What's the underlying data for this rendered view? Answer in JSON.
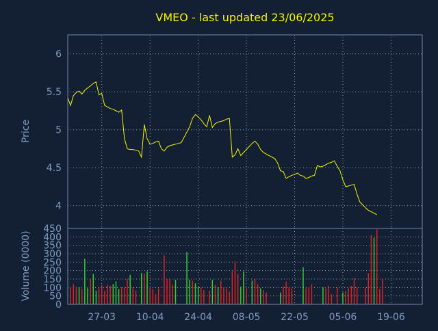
{
  "theme": {
    "background": "#132033",
    "frame": "#6f86a8",
    "grid": "#c8d0dc",
    "title_color": "#f5f500",
    "axis_text": "#7e9cc2",
    "price_line": "#f5f500",
    "volume_up": "#33cc33",
    "volume_down": "#dd2222"
  },
  "chart_data": [
    {
      "type": "line",
      "panel": "price",
      "title": "VMEO - last updated 23/06/2025",
      "ylabel": "Price",
      "ylim": [
        3.7,
        6.25
      ],
      "yticks": [
        "4",
        "4.5",
        "5",
        "5.5",
        "6"
      ],
      "xlim": [
        0,
        125
      ],
      "x_tick_positions": [
        12,
        29,
        46,
        63,
        80,
        97,
        114
      ],
      "x_tick_labels": [
        "27-03",
        "10-04",
        "24-04",
        "08-05",
        "22-05",
        "05-06",
        "19-06"
      ],
      "grid": true,
      "series": [
        {
          "values": [
            [
              0,
              5.42
            ],
            [
              1,
              5.32
            ],
            [
              2,
              5.45
            ],
            [
              3,
              5.49
            ],
            [
              4,
              5.51
            ],
            [
              5,
              5.47
            ],
            [
              6,
              5.52
            ],
            [
              7,
              5.55
            ],
            [
              8,
              5.58
            ],
            [
              9,
              5.61
            ],
            [
              10,
              5.63
            ],
            [
              11,
              5.46
            ],
            [
              12,
              5.48
            ],
            [
              13,
              5.32
            ],
            [
              14,
              5.3
            ],
            [
              15,
              5.28
            ],
            [
              16,
              5.27
            ],
            [
              17,
              5.25
            ],
            [
              18,
              5.23
            ],
            [
              19,
              5.26
            ],
            [
              20,
              4.88
            ],
            [
              21,
              4.75
            ],
            [
              22,
              4.74
            ],
            [
              23,
              4.74
            ],
            [
              24,
              4.73
            ],
            [
              25,
              4.72
            ],
            [
              26,
              4.64
            ],
            [
              27,
              5.07
            ],
            [
              28,
              4.88
            ],
            [
              29,
              4.81
            ],
            [
              30,
              4.82
            ],
            [
              31,
              4.84
            ],
            [
              32,
              4.85
            ],
            [
              33,
              4.75
            ],
            [
              34,
              4.72
            ],
            [
              35,
              4.77
            ],
            [
              36,
              4.79
            ],
            [
              37,
              4.8
            ],
            [
              38,
              4.81
            ],
            [
              39,
              4.82
            ],
            [
              40,
              4.83
            ],
            [
              41,
              4.9
            ],
            [
              42,
              4.97
            ],
            [
              43,
              5.04
            ],
            [
              44,
              5.15
            ],
            [
              45,
              5.2
            ],
            [
              46,
              5.17
            ],
            [
              47,
              5.13
            ],
            [
              48,
              5.08
            ],
            [
              49,
              5.04
            ],
            [
              50,
              5.19
            ],
            [
              51,
              5.03
            ],
            [
              52,
              5.08
            ],
            [
              53,
              5.1
            ],
            [
              54,
              5.11
            ],
            [
              55,
              5.12
            ],
            [
              56,
              5.14
            ],
            [
              57,
              5.15
            ],
            [
              58,
              4.64
            ],
            [
              59,
              4.67
            ],
            [
              60,
              4.75
            ],
            [
              61,
              4.66
            ],
            [
              62,
              4.7
            ],
            [
              63,
              4.74
            ],
            [
              64,
              4.78
            ],
            [
              65,
              4.82
            ],
            [
              66,
              4.85
            ],
            [
              67,
              4.81
            ],
            [
              68,
              4.74
            ],
            [
              69,
              4.7
            ],
            [
              70,
              4.68
            ],
            [
              71,
              4.66
            ],
            [
              72,
              4.64
            ],
            [
              73,
              4.62
            ],
            [
              74,
              4.56
            ],
            [
              75,
              4.46
            ],
            [
              76,
              4.45
            ],
            [
              77,
              4.36
            ],
            [
              78,
              4.38
            ],
            [
              79,
              4.4
            ],
            [
              80,
              4.41
            ],
            [
              81,
              4.43
            ],
            [
              82,
              4.4
            ],
            [
              83,
              4.39
            ],
            [
              84,
              4.36
            ],
            [
              85,
              4.37
            ],
            [
              86,
              4.39
            ],
            [
              87,
              4.4
            ],
            [
              88,
              4.53
            ],
            [
              89,
              4.51
            ],
            [
              90,
              4.52
            ],
            [
              91,
              4.54
            ],
            [
              92,
              4.56
            ],
            [
              93,
              4.57
            ],
            [
              94,
              4.59
            ],
            [
              95,
              4.52
            ],
            [
              96,
              4.46
            ],
            [
              97,
              4.34
            ],
            [
              98,
              4.25
            ],
            [
              99,
              4.26
            ],
            [
              100,
              4.27
            ],
            [
              101,
              4.28
            ],
            [
              102,
              4.15
            ],
            [
              103,
              4.05
            ],
            [
              104,
              4.01
            ],
            [
              105,
              3.97
            ],
            [
              106,
              3.94
            ],
            [
              107,
              3.92
            ],
            [
              108,
              3.9
            ],
            [
              109,
              3.88
            ]
          ]
        }
      ]
    },
    {
      "type": "bar",
      "panel": "volume",
      "ylabel": "Volume (0000)",
      "ylim": [
        0,
        450
      ],
      "yticks": [
        "0",
        "50",
        "100",
        "150",
        "200",
        "250",
        "300",
        "350",
        "400",
        "450"
      ],
      "xlim": [
        0,
        125
      ],
      "grid": true,
      "series": [
        {
          "values": [
            [
              1,
              100,
              "down"
            ],
            [
              2,
              120,
              "down"
            ],
            [
              3,
              95,
              "down"
            ],
            [
              4,
              100,
              "up"
            ],
            [
              5,
              90,
              "down"
            ],
            [
              6,
              270,
              "up"
            ],
            [
              7,
              95,
              "up"
            ],
            [
              8,
              150,
              "down"
            ],
            [
              9,
              180,
              "up"
            ],
            [
              10,
              80,
              "up"
            ],
            [
              11,
              95,
              "down"
            ],
            [
              12,
              115,
              "down"
            ],
            [
              13,
              80,
              "down"
            ],
            [
              14,
              115,
              "down"
            ],
            [
              15,
              110,
              "down"
            ],
            [
              16,
              120,
              "up"
            ],
            [
              17,
              135,
              "up"
            ],
            [
              18,
              90,
              "up"
            ],
            [
              19,
              100,
              "down"
            ],
            [
              20,
              100,
              "down"
            ],
            [
              21,
              150,
              "down"
            ],
            [
              22,
              175,
              "up"
            ],
            [
              23,
              100,
              "down"
            ],
            [
              24,
              80,
              "down"
            ],
            [
              26,
              185,
              "up"
            ],
            [
              27,
              180,
              "down"
            ],
            [
              28,
              195,
              "up"
            ],
            [
              29,
              100,
              "down"
            ],
            [
              30,
              90,
              "down"
            ],
            [
              31,
              60,
              "down"
            ],
            [
              32,
              95,
              "down"
            ],
            [
              34,
              290,
              "down"
            ],
            [
              35,
              150,
              "down"
            ],
            [
              36,
              150,
              "down"
            ],
            [
              37,
              115,
              "down"
            ],
            [
              38,
              145,
              "up"
            ],
            [
              42,
              310,
              "up"
            ],
            [
              43,
              145,
              "up"
            ],
            [
              44,
              140,
              "down"
            ],
            [
              45,
              125,
              "up"
            ],
            [
              46,
              105,
              "up"
            ],
            [
              47,
              100,
              "down"
            ],
            [
              48,
              85,
              "down"
            ],
            [
              50,
              80,
              "down"
            ],
            [
              51,
              145,
              "up"
            ],
            [
              52,
              115,
              "down"
            ],
            [
              53,
              100,
              "up"
            ],
            [
              54,
              140,
              "down"
            ],
            [
              55,
              100,
              "down"
            ],
            [
              56,
              95,
              "down"
            ],
            [
              57,
              75,
              "down"
            ],
            [
              58,
              195,
              "down"
            ],
            [
              59,
              255,
              "down"
            ],
            [
              60,
              180,
              "down"
            ],
            [
              61,
              105,
              "up"
            ],
            [
              62,
              195,
              "up"
            ],
            [
              63,
              95,
              "down"
            ],
            [
              65,
              140,
              "up"
            ],
            [
              66,
              150,
              "down"
            ],
            [
              67,
              120,
              "down"
            ],
            [
              68,
              95,
              "up"
            ],
            [
              69,
              85,
              "down"
            ],
            [
              70,
              70,
              "down"
            ],
            [
              75,
              70,
              "up"
            ],
            [
              76,
              105,
              "down"
            ],
            [
              77,
              135,
              "down"
            ],
            [
              78,
              100,
              "down"
            ],
            [
              79,
              95,
              "down"
            ],
            [
              83,
              220,
              "up"
            ],
            [
              84,
              95,
              "down"
            ],
            [
              85,
              100,
              "down"
            ],
            [
              86,
              120,
              "down"
            ],
            [
              90,
              100,
              "up"
            ],
            [
              91,
              95,
              "down"
            ],
            [
              92,
              110,
              "down"
            ],
            [
              93,
              60,
              "down"
            ],
            [
              95,
              100,
              "down"
            ],
            [
              97,
              70,
              "up"
            ],
            [
              98,
              80,
              "down"
            ],
            [
              99,
              95,
              "down"
            ],
            [
              100,
              110,
              "down"
            ],
            [
              101,
              155,
              "down"
            ],
            [
              102,
              100,
              "down"
            ],
            [
              105,
              100,
              "down"
            ],
            [
              106,
              185,
              "down"
            ],
            [
              107,
              410,
              "down"
            ],
            [
              108,
              395,
              "up"
            ],
            [
              109,
              445,
              "down"
            ],
            [
              110,
              90,
              "down"
            ],
            [
              111,
              150,
              "down"
            ]
          ]
        }
      ]
    }
  ]
}
